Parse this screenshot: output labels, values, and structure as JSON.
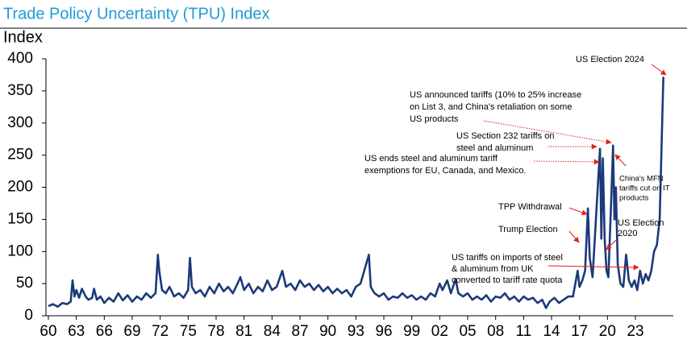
{
  "chart_data": {
    "type": "line",
    "title": "Trade Policy Uncertainty (TPU) Index",
    "ylabel": "Index",
    "x": [
      1960.0,
      1960.5,
      1961,
      1961.5,
      1962,
      1962.4,
      1962.6,
      1962.8,
      1963,
      1963.3,
      1963.6,
      1964,
      1964.3,
      1964.7,
      1964.9,
      1965.2,
      1965.6,
      1966,
      1966.5,
      1967,
      1967.5,
      1968,
      1968.5,
      1969,
      1969.5,
      1970,
      1970.5,
      1971,
      1971.5,
      1971.75,
      1971.9,
      1972.2,
      1972.6,
      1973,
      1973.5,
      1974,
      1974.5,
      1975,
      1975.2,
      1975.4,
      1975.8,
      1976.3,
      1976.8,
      1977.3,
      1977.8,
      1978.3,
      1978.8,
      1979.3,
      1979.8,
      1980.3,
      1980.6,
      1981,
      1981.5,
      1982,
      1982.5,
      1983,
      1983.5,
      1984,
      1984.5,
      1985.1,
      1985.5,
      1986,
      1986.5,
      1987,
      1987.5,
      1988,
      1988.5,
      1989,
      1989.5,
      1990,
      1990.5,
      1991,
      1991.5,
      1992,
      1992.5,
      1993,
      1993.5,
      1994.4,
      1994.6,
      1995,
      1995.5,
      1996,
      1996.5,
      1997,
      1997.5,
      1998,
      1998.5,
      1999,
      1999.5,
      2000,
      2000.5,
      2001,
      2001.5,
      2002,
      2002.3,
      2002.8,
      2003.2,
      2003.7,
      2004,
      2004.5,
      2005,
      2005.5,
      2006,
      2006.5,
      2007,
      2007.5,
      2008,
      2008.5,
      2009,
      2009.5,
      2010,
      2010.5,
      2011,
      2011.5,
      2012,
      2012.5,
      2013,
      2013.4,
      2013.8,
      2014.3,
      2014.8,
      2015.3,
      2015.8,
      2016.3,
      2016.8,
      2017.0,
      2017.3,
      2017.6,
      2017.9,
      2018.1,
      2018.4,
      2018.8,
      2019.2,
      2019.35,
      2019.5,
      2019.7,
      2019.9,
      2020.1,
      2020.4,
      2020.6,
      2020.75,
      2020.9,
      2021.1,
      2021.4,
      2021.7,
      2022.0,
      2022.3,
      2022.6,
      2022.9,
      2023.2,
      2023.5,
      2023.8,
      2024.1,
      2024.4,
      2024.7,
      2025.0,
      2025.3,
      2025.6,
      2026.0
    ],
    "series": [
      {
        "name": "TPU Index",
        "color": "#1b3a7a",
        "values": [
          15,
          18,
          14,
          20,
          18,
          22,
          55,
          30,
          40,
          28,
          42,
          30,
          25,
          28,
          42,
          25,
          30,
          20,
          28,
          22,
          35,
          24,
          32,
          22,
          30,
          25,
          35,
          28,
          35,
          95,
          70,
          40,
          35,
          45,
          30,
          35,
          28,
          40,
          90,
          45,
          35,
          40,
          30,
          45,
          35,
          50,
          38,
          45,
          35,
          50,
          60,
          40,
          50,
          35,
          45,
          38,
          55,
          40,
          45,
          70,
          45,
          50,
          40,
          55,
          45,
          50,
          40,
          48,
          38,
          45,
          35,
          42,
          35,
          40,
          30,
          45,
          50,
          95,
          45,
          35,
          30,
          35,
          25,
          30,
          28,
          35,
          28,
          32,
          25,
          30,
          25,
          35,
          30,
          50,
          40,
          55,
          35,
          57,
          35,
          30,
          35,
          25,
          30,
          25,
          32,
          22,
          30,
          28,
          35,
          25,
          30,
          22,
          30,
          25,
          28,
          20,
          25,
          12,
          22,
          28,
          20,
          25,
          30,
          30,
          70,
          45,
          55,
          70,
          167,
          90,
          60,
          160,
          260,
          120,
          245,
          120,
          70,
          60,
          180,
          265,
          150,
          200,
          80,
          50,
          45,
          95,
          55,
          45,
          55,
          40,
          70,
          50,
          65,
          55,
          70,
          100,
          110,
          150,
          372
        ]
      }
    ],
    "xlim": [
      1960,
      2026.2
    ],
    "ylim": [
      0,
      400
    ],
    "yticks": [
      0,
      50,
      100,
      150,
      200,
      250,
      300,
      350,
      400
    ],
    "xticks": [
      {
        "value": 1960,
        "label": "60"
      },
      {
        "value": 1963,
        "label": "63"
      },
      {
        "value": 1966,
        "label": "66"
      },
      {
        "value": 1969,
        "label": "69"
      },
      {
        "value": 1972,
        "label": "72"
      },
      {
        "value": 1975,
        "label": "75"
      },
      {
        "value": 1978,
        "label": "78"
      },
      {
        "value": 1981,
        "label": "81"
      },
      {
        "value": 1984,
        "label": "84"
      },
      {
        "value": 1987,
        "label": "87"
      },
      {
        "value": 1990,
        "label": "90"
      },
      {
        "value": 1993,
        "label": "93"
      },
      {
        "value": 1996,
        "label": "96"
      },
      {
        "value": 1999,
        "label": "99"
      },
      {
        "value": 2002,
        "label": "02"
      },
      {
        "value": 2005,
        "label": "05"
      },
      {
        "value": 2008,
        "label": "08"
      },
      {
        "value": 2011,
        "label": "11"
      },
      {
        "value": 2014,
        "label": "14"
      },
      {
        "value": 2017,
        "label": "17"
      },
      {
        "value": 2020,
        "label": "20"
      },
      {
        "value": 2023,
        "label": "23"
      }
    ],
    "annotations": [
      {
        "lines": [
          "US Election 2024"
        ]
      },
      {
        "lines": [
          "US announced tariffs (10% to 25% increase",
          "on List 3, and China's retaliation on some",
          "US products"
        ]
      },
      {
        "lines": [
          "US Section 232 tariffs on",
          "steel and aluminum"
        ]
      },
      {
        "lines": [
          "US ends steel and aluminum tariff",
          "exemptions for EU, Canada, and Mexico."
        ]
      },
      {
        "lines": [
          "China's MFN",
          "tariffs cut on IT",
          "products"
        ]
      },
      {
        "lines": [
          "TPP Withdrawal"
        ]
      },
      {
        "lines": [
          "Trump Election"
        ]
      },
      {
        "lines": [
          "US Election",
          "2020"
        ]
      },
      {
        "lines": [
          "US tariffs on imports of steel",
          "& aluminum from UK",
          "converted to tariff rate quota"
        ]
      }
    ]
  }
}
